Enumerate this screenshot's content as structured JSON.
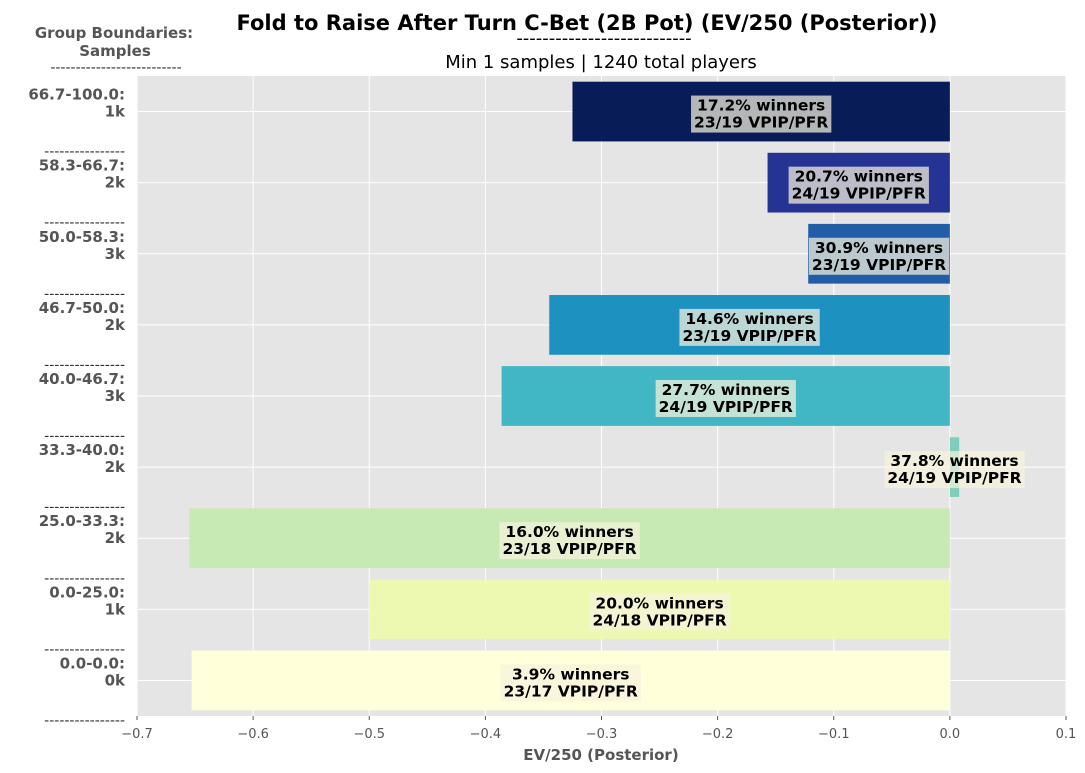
{
  "chart_data": {
    "type": "bar",
    "orientation": "horizontal",
    "title": "Fold to Raise After Turn C-Bet (2B Pot) (EV/250 (Posterior))",
    "title_underline": "---------------------------",
    "subtitle": "Min 1 samples | 1240 total players",
    "ylabel_header": [
      "Group Boundaries:",
      "Samples"
    ],
    "ylabel_header_underline": "--------------------------",
    "row_separator": "----------------",
    "xlabel": "EV/250 (Posterior)",
    "xlim": [
      -0.7,
      0.1
    ],
    "xticks": [
      -0.7,
      -0.6,
      -0.5,
      -0.4,
      -0.3,
      -0.2,
      -0.1,
      0.0,
      0.1
    ],
    "xtick_labels": [
      "−0.7",
      "−0.6",
      "−0.5",
      "−0.4",
      "−0.3",
      "−0.2",
      "−0.1",
      "0.0",
      "0.1"
    ],
    "grid": true,
    "categories": [
      {
        "range": "66.7-100.0:",
        "samples": "1k",
        "value": -0.325,
        "winners": "17.2% winners",
        "vpip": "23/19 VPIP/PFR",
        "color": "#081d58"
      },
      {
        "range": "58.3-66.7:",
        "samples": "2k",
        "value": -0.157,
        "winners": "20.7% winners",
        "vpip": "24/19 VPIP/PFR",
        "color": "#253494"
      },
      {
        "range": "50.0-58.3:",
        "samples": "3k",
        "value": -0.122,
        "winners": "30.9% winners",
        "vpip": "23/19 VPIP/PFR",
        "color": "#225ea8"
      },
      {
        "range": "46.7-50.0:",
        "samples": "2k",
        "value": -0.345,
        "winners": "14.6% winners",
        "vpip": "23/19 VPIP/PFR",
        "color": "#1d91c0"
      },
      {
        "range": "40.0-46.7:",
        "samples": "3k",
        "value": -0.386,
        "winners": "27.7% winners",
        "vpip": "24/19 VPIP/PFR",
        "color": "#41b6c4"
      },
      {
        "range": "33.3-40.0:",
        "samples": "2k",
        "value": 0.008,
        "winners": "37.8% winners",
        "vpip": "24/19 VPIP/PFR",
        "color": "#7fcdbb"
      },
      {
        "range": "25.0-33.3:",
        "samples": "2k",
        "value": -0.655,
        "winners": "16.0% winners",
        "vpip": "23/18 VPIP/PFR",
        "color": "#c7e9b4"
      },
      {
        "range": "0.0-25.0:",
        "samples": "1k",
        "value": -0.5,
        "winners": "20.0% winners",
        "vpip": "24/18 VPIP/PFR",
        "color": "#edf8b1"
      },
      {
        "range": "0.0-0.0:",
        "samples": "0k",
        "value": -0.653,
        "winners": "3.9% winners",
        "vpip": "23/17 VPIP/PFR",
        "color": "#ffffd9"
      }
    ]
  }
}
